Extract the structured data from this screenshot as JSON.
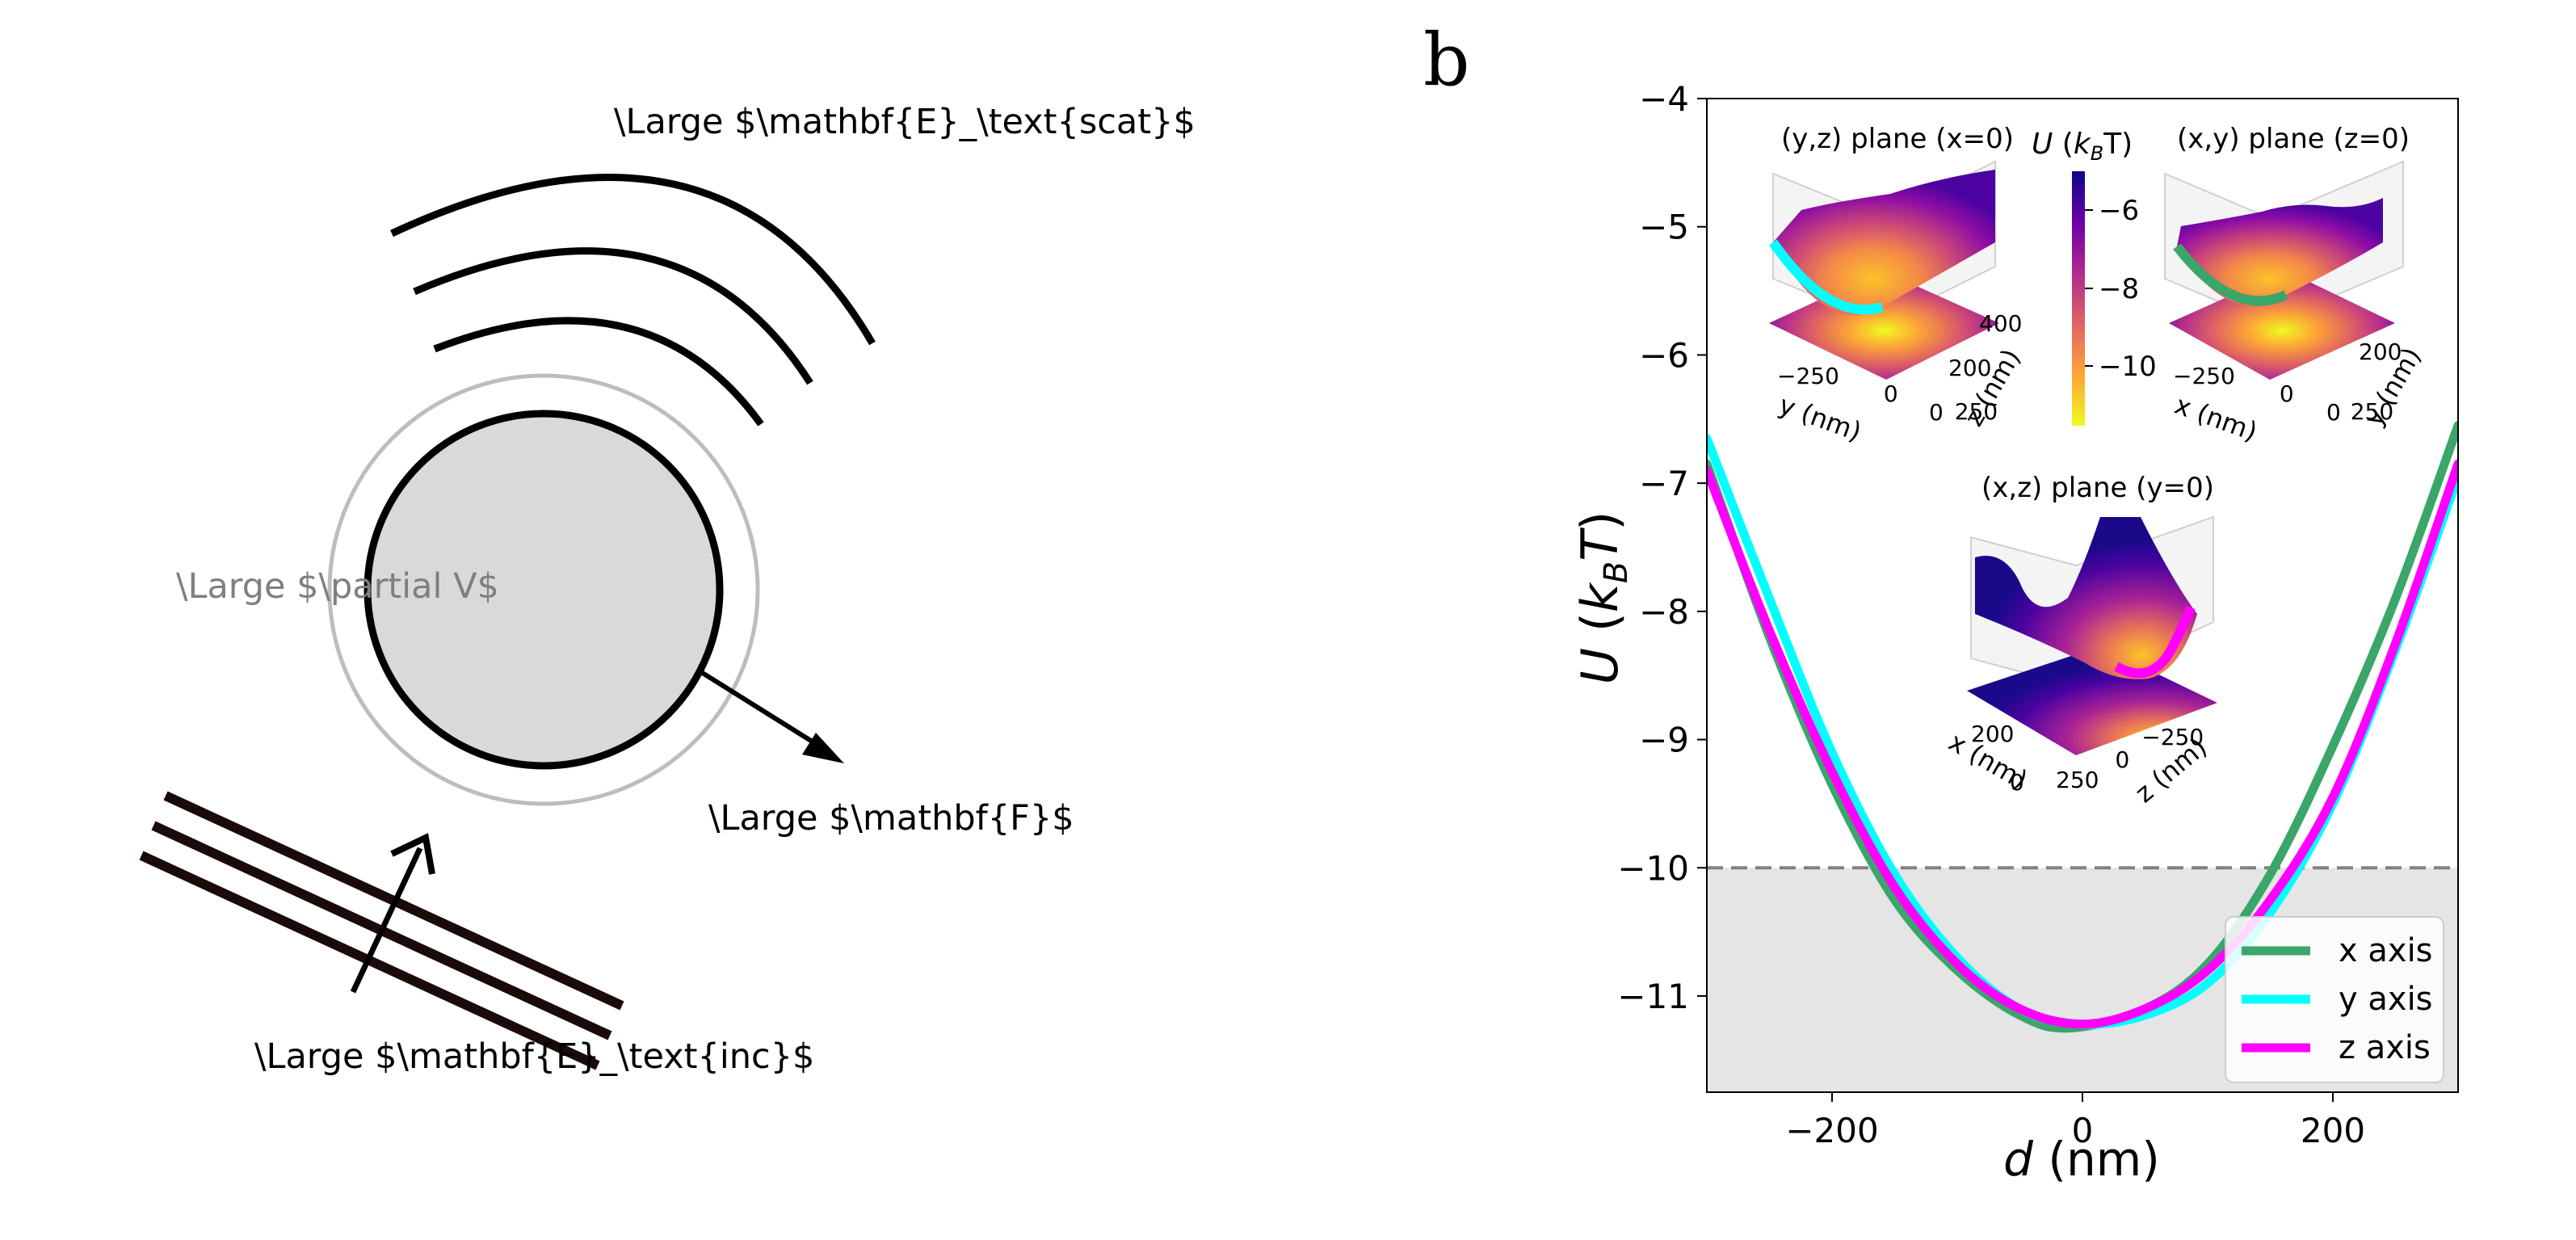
{
  "panel_a": {
    "label_E_scat": "\\Large $\\mathbf{E}_\\text{scat}$",
    "label_partial_V": "\\Large $\\partial V$",
    "label_F": "\\Large $\\mathbf{F}$",
    "label_E_inc": "\\Large $\\mathbf{E}_\\text{inc}$"
  },
  "panel_b": {
    "panel_letter": "b",
    "inset_titles": {
      "yz": "(y,z) plane (x=0)",
      "xy": "(x,y) plane (z=0)",
      "xz": "(x,z) plane (y=0)"
    },
    "colorbar": {
      "label": "U (k",
      "label_sub": "B",
      "label_tail": "T)",
      "ticks": [
        "−6",
        "−8",
        "−10"
      ],
      "colormap": "plasma"
    },
    "inset_yz_axes": {
      "y_ticks": [
        "−250",
        "0",
        "250"
      ],
      "z_ticks": [
        "0",
        "200",
        "400"
      ],
      "y_label": "y (nm)",
      "z_label": "z (nm)"
    },
    "inset_xy_axes": {
      "x_ticks": [
        "−250",
        "0",
        "250"
      ],
      "y_ticks": [
        "0",
        "200"
      ],
      "x_label": "x (nm)",
      "y_label": "y (nm)"
    },
    "inset_xz_axes": {
      "x_ticks": [
        "0",
        "200"
      ],
      "z_ticks": [
        "250",
        "0",
        "−250"
      ],
      "x_label": "x (nm)",
      "z_label": "z (nm)"
    }
  },
  "chart_data": {
    "type": "line",
    "xlabel": "d (nm)",
    "xlabel_italic": "d",
    "xlabel_unit": " (nm)",
    "ylabel_prefix": "U (k",
    "ylabel_sub": "B",
    "ylabel_suffix": "T)",
    "xlim": [
      -300,
      300
    ],
    "ylim": [
      -11.75,
      -4
    ],
    "x_ticks": [
      -200,
      0,
      200
    ],
    "x_tick_labels": [
      "−200",
      "0",
      "200"
    ],
    "y_ticks": [
      -4,
      -5,
      -6,
      -7,
      -8,
      -9,
      -10,
      -11
    ],
    "y_tick_labels": [
      "−4",
      "−5",
      "−6",
      "−7",
      "−8",
      "−9",
      "−10",
      "−11"
    ],
    "threshold": -10,
    "threshold_style": "dashed",
    "shaded_below_threshold": true,
    "legend_position": "bottom-right",
    "series": [
      {
        "name": "x axis",
        "color": "#3aa66a",
        "x": [
          -300,
          -250,
          -200,
          -150,
          -100,
          -50,
          -10,
          50,
          100,
          150,
          200,
          250,
          300
        ],
        "y": [
          -6.85,
          -8.2,
          -9.35,
          -10.25,
          -10.8,
          -11.15,
          -11.25,
          -11.1,
          -10.75,
          -10.05,
          -9.05,
          -7.9,
          -6.55
        ]
      },
      {
        "name": "y axis",
        "color": "#00ffff",
        "x": [
          -300,
          -250,
          -200,
          -150,
          -100,
          -50,
          0,
          50,
          100,
          150,
          200,
          250,
          300
        ],
        "y": [
          -6.65,
          -7.9,
          -9.1,
          -10.05,
          -10.7,
          -11.1,
          -11.22,
          -11.15,
          -10.9,
          -10.35,
          -9.5,
          -8.3,
          -6.95
        ]
      },
      {
        "name": "z axis",
        "color": "#ff00ff",
        "x": [
          -300,
          -250,
          -200,
          -150,
          -100,
          -50,
          0,
          50,
          100,
          150,
          200,
          250,
          300
        ],
        "y": [
          -6.9,
          -8.15,
          -9.25,
          -10.15,
          -10.75,
          -11.1,
          -11.22,
          -11.1,
          -10.8,
          -10.25,
          -9.45,
          -8.25,
          -6.85
        ]
      }
    ]
  }
}
